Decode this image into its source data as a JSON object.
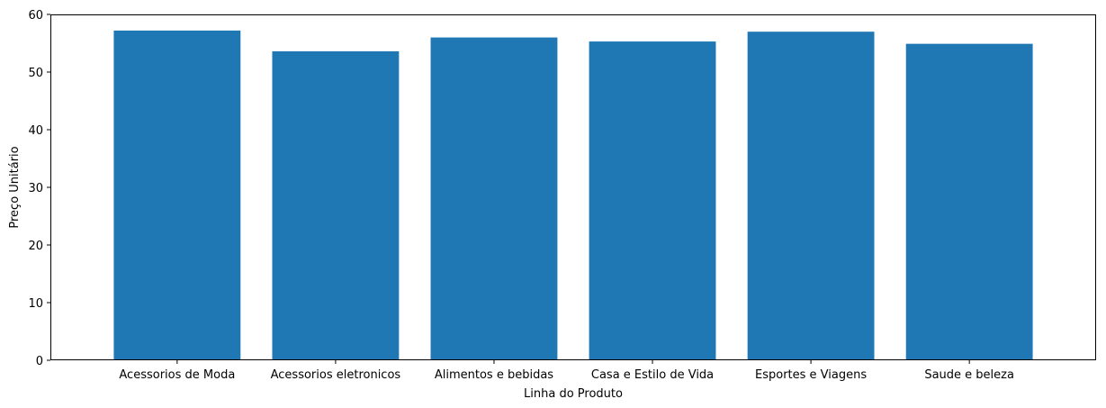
{
  "chart_data": {
    "type": "bar",
    "title": "",
    "xlabel": "Linha do Produto",
    "ylabel": "Preço Unitário",
    "categories": [
      "Acessorios de Moda",
      "Acessorios eletronicos",
      "Alimentos e bebidas",
      "Casa e Estilo de Vida",
      "Esportes e Viagens",
      "Saude e beleza"
    ],
    "values": [
      57.2,
      53.6,
      56.0,
      55.3,
      57.0,
      54.9
    ],
    "ylim": [
      0,
      60
    ],
    "yticks": [
      0,
      10,
      20,
      30,
      40,
      50,
      60
    ],
    "bar_color": "#1f77b4",
    "grid": false,
    "legend": "none"
  }
}
